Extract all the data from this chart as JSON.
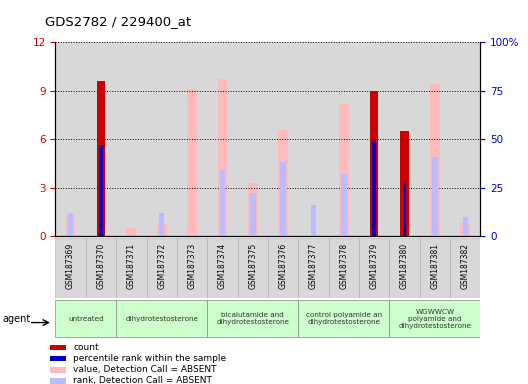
{
  "title": "GDS2782 / 229400_at",
  "samples": [
    "GSM187369",
    "GSM187370",
    "GSM187371",
    "GSM187372",
    "GSM187373",
    "GSM187374",
    "GSM187375",
    "GSM187376",
    "GSM187377",
    "GSM187378",
    "GSM187379",
    "GSM187380",
    "GSM187381",
    "GSM187382"
  ],
  "groups": [
    {
      "label": "untreated",
      "samples": [
        0,
        1
      ],
      "color": "#ccffcc"
    },
    {
      "label": "dihydrotestosterone",
      "samples": [
        2,
        3,
        4
      ],
      "color": "#ccffcc"
    },
    {
      "label": "bicalutamide and\ndihydrotestosterone",
      "samples": [
        5,
        6,
        7
      ],
      "color": "#ccffcc"
    },
    {
      "label": "control polyamide an\ndihydrotestosterone",
      "samples": [
        8,
        9,
        10
      ],
      "color": "#ccffcc"
    },
    {
      "label": "WGWWCW\npolyamide and\ndihydrotestosterone",
      "samples": [
        11,
        12,
        13
      ],
      "color": "#ccffcc"
    }
  ],
  "count_values": [
    0,
    9.6,
    0,
    0,
    0,
    0,
    0,
    0,
    0,
    0,
    9.0,
    6.5,
    0,
    0
  ],
  "rank_values_pct": [
    0,
    47,
    0,
    0,
    0,
    0,
    0,
    0,
    0,
    0,
    49,
    27,
    0,
    0
  ],
  "absent_value_values": [
    1.3,
    0,
    0.5,
    0.8,
    9.1,
    9.7,
    3.3,
    6.6,
    0,
    8.2,
    0,
    0,
    9.4,
    0.8
  ],
  "absent_rank_values_pct": [
    12,
    0,
    0,
    12,
    0,
    34,
    22,
    38,
    16,
    32,
    0,
    0,
    41,
    10
  ],
  "left_yticks": [
    0,
    3,
    6,
    9,
    12
  ],
  "right_yticks": [
    0,
    25,
    50,
    75,
    100
  ],
  "left_ylim": [
    0,
    12
  ],
  "right_ylim": [
    0,
    100
  ],
  "left_ylabel_color": "#cc0000",
  "right_ylabel_color": "#0000cc",
  "count_color": "#cc0000",
  "rank_color": "#0000cc",
  "absent_value_color": "#ffbbbb",
  "absent_rank_color": "#bbbbff",
  "bg_color": "#ffffff",
  "col_bg_color": "#d8d8d8",
  "legend_items": [
    "count",
    "percentile rank within the sample",
    "value, Detection Call = ABSENT",
    "rank, Detection Call = ABSENT"
  ],
  "legend_colors": [
    "#cc0000",
    "#0000cc",
    "#ffbbbb",
    "#bbbbff"
  ]
}
